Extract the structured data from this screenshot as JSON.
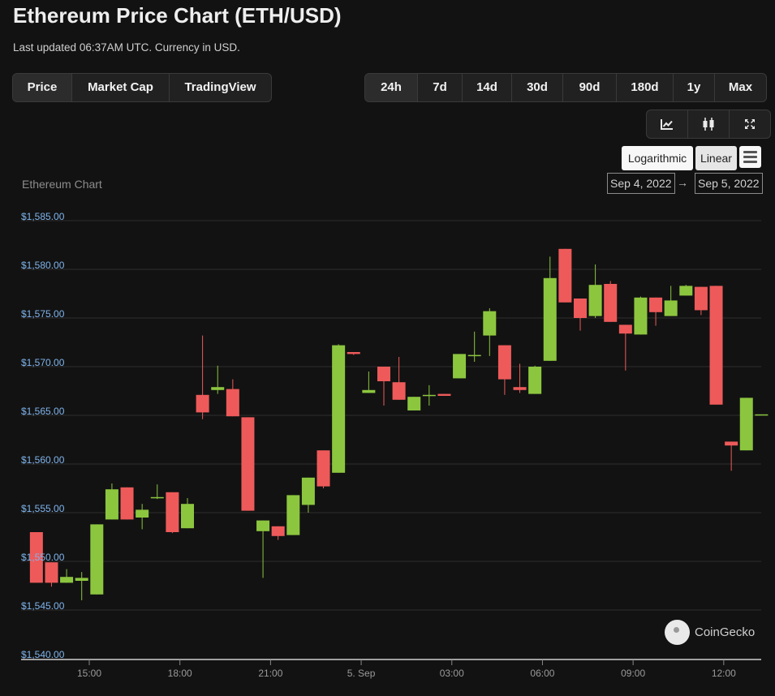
{
  "header": {
    "title": "Ethereum Price Chart (ETH/USD)",
    "subtitle": "Last updated 06:37AM UTC. Currency in USD."
  },
  "tabs": [
    {
      "label": "Price",
      "active": true
    },
    {
      "label": "Market Cap",
      "active": false
    },
    {
      "label": "TradingView",
      "active": false
    }
  ],
  "ranges": [
    {
      "label": "24h",
      "active": true
    },
    {
      "label": "7d",
      "active": false
    },
    {
      "label": "14d",
      "active": false
    },
    {
      "label": "30d",
      "active": false
    },
    {
      "label": "90d",
      "active": false
    },
    {
      "label": "180d",
      "active": false
    },
    {
      "label": "1y",
      "active": false
    },
    {
      "label": "Max",
      "active": false
    }
  ],
  "tools": {
    "icons": [
      "line-chart-icon",
      "candlestick-icon",
      "fullscreen-icon"
    ]
  },
  "scale": {
    "logarithmic_label": "Logarithmic",
    "linear_label": "Linear",
    "menu_icon": "hamburger-menu-icon"
  },
  "range_selector": {
    "from": "Sep 4, 2022",
    "arrow": "→",
    "to": "Sep 5, 2022"
  },
  "branding": {
    "name": "CoinGecko",
    "logo_icon": "coingecko-logo-icon"
  },
  "colors": {
    "up": "#8cc63f",
    "down": "#ee5a5a",
    "y_tick_label": "#7fb5ee",
    "background": "#121212"
  },
  "chart_data": {
    "type": "candlestick",
    "title": "Ethereum Chart",
    "ylim": [
      1540,
      1585
    ],
    "y_ticks": [
      1540,
      1545,
      1550,
      1555,
      1560,
      1565,
      1570,
      1575,
      1580,
      1585
    ],
    "y_tick_labels": [
      "$1,540.00",
      "$1,545.00",
      "$1,550.00",
      "$1,555.00",
      "$1,560.00",
      "$1,565.00",
      "$1,570.00",
      "$1,575.00",
      "$1,580.00",
      "$1,585.00"
    ],
    "x_ticks": [
      15,
      18,
      21,
      24,
      27,
      30,
      33,
      36
    ],
    "x_tick_labels": [
      "15:00",
      "18:00",
      "21:00",
      "5. Sep",
      "03:00",
      "06:00",
      "09:00",
      "12:00"
    ],
    "x_unit": "hours from Sep 4, 2022 00:00 UTC",
    "grid": true,
    "candles": [
      {
        "t": 13.25,
        "o": 1553.0,
        "h": 1553.0,
        "l": 1547.8,
        "c": 1547.8
      },
      {
        "t": 13.75,
        "o": 1549.9,
        "h": 1549.9,
        "l": 1547.4,
        "c": 1547.8
      },
      {
        "t": 14.25,
        "o": 1547.8,
        "h": 1549.2,
        "l": 1547.8,
        "c": 1548.4
      },
      {
        "t": 14.75,
        "o": 1548.0,
        "h": 1548.9,
        "l": 1546.0,
        "c": 1548.3
      },
      {
        "t": 15.25,
        "o": 1546.6,
        "h": 1553.8,
        "l": 1546.6,
        "c": 1553.8
      },
      {
        "t": 15.75,
        "o": 1554.3,
        "h": 1558.0,
        "l": 1554.3,
        "c": 1557.4
      },
      {
        "t": 16.25,
        "o": 1557.6,
        "h": 1557.6,
        "l": 1554.3,
        "c": 1554.3
      },
      {
        "t": 16.75,
        "o": 1554.5,
        "h": 1555.9,
        "l": 1553.3,
        "c": 1555.3
      },
      {
        "t": 17.25,
        "o": 1556.6,
        "h": 1557.9,
        "l": 1556.4,
        "c": 1556.6
      },
      {
        "t": 17.75,
        "o": 1557.1,
        "h": 1557.1,
        "l": 1552.9,
        "c": 1553.0
      },
      {
        "t": 18.25,
        "o": 1553.4,
        "h": 1556.5,
        "l": 1553.4,
        "c": 1555.9
      },
      {
        "t": 18.75,
        "o": 1567.1,
        "h": 1573.2,
        "l": 1564.6,
        "c": 1565.3
      },
      {
        "t": 19.25,
        "o": 1567.6,
        "h": 1570.1,
        "l": 1567.2,
        "c": 1567.9
      },
      {
        "t": 19.75,
        "o": 1567.7,
        "h": 1568.7,
        "l": 1564.9,
        "c": 1564.9
      },
      {
        "t": 20.25,
        "o": 1564.8,
        "h": 1564.8,
        "l": 1555.2,
        "c": 1555.2
      },
      {
        "t": 20.75,
        "o": 1553.1,
        "h": 1554.2,
        "l": 1548.3,
        "c": 1554.2
      },
      {
        "t": 21.25,
        "o": 1553.6,
        "h": 1553.6,
        "l": 1552.2,
        "c": 1552.6
      },
      {
        "t": 21.75,
        "o": 1552.7,
        "h": 1556.8,
        "l": 1552.7,
        "c": 1556.8
      },
      {
        "t": 22.25,
        "o": 1555.8,
        "h": 1558.6,
        "l": 1555.0,
        "c": 1558.6
      },
      {
        "t": 22.75,
        "o": 1561.4,
        "h": 1561.4,
        "l": 1557.5,
        "c": 1557.7
      },
      {
        "t": 23.25,
        "o": 1559.1,
        "h": 1572.3,
        "l": 1559.1,
        "c": 1572.2
      },
      {
        "t": 23.75,
        "o": 1571.5,
        "h": 1571.5,
        "l": 1571.2,
        "c": 1571.3
      },
      {
        "t": 24.25,
        "o": 1567.3,
        "h": 1569.5,
        "l": 1567.3,
        "c": 1567.6
      },
      {
        "t": 24.75,
        "o": 1570.0,
        "h": 1570.0,
        "l": 1566.0,
        "c": 1568.5
      },
      {
        "t": 25.25,
        "o": 1568.4,
        "h": 1571.0,
        "l": 1566.6,
        "c": 1566.6
      },
      {
        "t": 25.75,
        "o": 1565.5,
        "h": 1566.9,
        "l": 1565.5,
        "c": 1566.9
      },
      {
        "t": 26.25,
        "o": 1567.1,
        "h": 1568.1,
        "l": 1566.0,
        "c": 1567.1
      },
      {
        "t": 26.75,
        "o": 1567.2,
        "h": 1567.2,
        "l": 1567.0,
        "c": 1567.0
      },
      {
        "t": 27.25,
        "o": 1568.8,
        "h": 1571.3,
        "l": 1568.8,
        "c": 1571.3
      },
      {
        "t": 27.75,
        "o": 1571.2,
        "h": 1573.6,
        "l": 1570.5,
        "c": 1571.2
      },
      {
        "t": 28.25,
        "o": 1573.2,
        "h": 1576.0,
        "l": 1571.1,
        "c": 1575.7
      },
      {
        "t": 28.75,
        "o": 1572.2,
        "h": 1572.2,
        "l": 1567.1,
        "c": 1568.7
      },
      {
        "t": 29.25,
        "o": 1567.9,
        "h": 1570.3,
        "l": 1567.3,
        "c": 1567.6
      },
      {
        "t": 29.75,
        "o": 1567.2,
        "h": 1570.1,
        "l": 1567.2,
        "c": 1570.0
      },
      {
        "t": 30.25,
        "o": 1570.6,
        "h": 1581.3,
        "l": 1570.6,
        "c": 1579.1
      },
      {
        "t": 30.75,
        "o": 1582.1,
        "h": 1582.1,
        "l": 1576.6,
        "c": 1576.6
      },
      {
        "t": 31.25,
        "o": 1577.0,
        "h": 1577.0,
        "l": 1573.7,
        "c": 1575.0
      },
      {
        "t": 31.75,
        "o": 1575.2,
        "h": 1580.5,
        "l": 1575.0,
        "c": 1578.4
      },
      {
        "t": 32.25,
        "o": 1578.5,
        "h": 1578.8,
        "l": 1574.6,
        "c": 1574.6
      },
      {
        "t": 32.75,
        "o": 1574.3,
        "h": 1574.3,
        "l": 1569.6,
        "c": 1573.4
      },
      {
        "t": 33.25,
        "o": 1573.3,
        "h": 1577.2,
        "l": 1573.3,
        "c": 1577.1
      },
      {
        "t": 33.75,
        "o": 1577.1,
        "h": 1577.1,
        "l": 1574.2,
        "c": 1575.6
      },
      {
        "t": 34.25,
        "o": 1575.2,
        "h": 1578.3,
        "l": 1575.2,
        "c": 1576.8
      },
      {
        "t": 34.75,
        "o": 1577.3,
        "h": 1578.4,
        "l": 1577.3,
        "c": 1578.3
      },
      {
        "t": 35.25,
        "o": 1578.2,
        "h": 1578.2,
        "l": 1575.3,
        "c": 1575.8
      },
      {
        "t": 35.75,
        "o": 1578.3,
        "h": 1578.3,
        "l": 1566.1,
        "c": 1566.1
      },
      {
        "t": 36.25,
        "o": 1562.3,
        "h": 1562.3,
        "l": 1559.3,
        "c": 1561.9
      },
      {
        "t": 36.75,
        "o": 1561.4,
        "h": 1566.8,
        "l": 1561.4,
        "c": 1566.8
      },
      {
        "t": 37.25,
        "o": 1565.1,
        "h": 1565.1,
        "l": 1565.1,
        "c": 1565.1
      }
    ]
  }
}
